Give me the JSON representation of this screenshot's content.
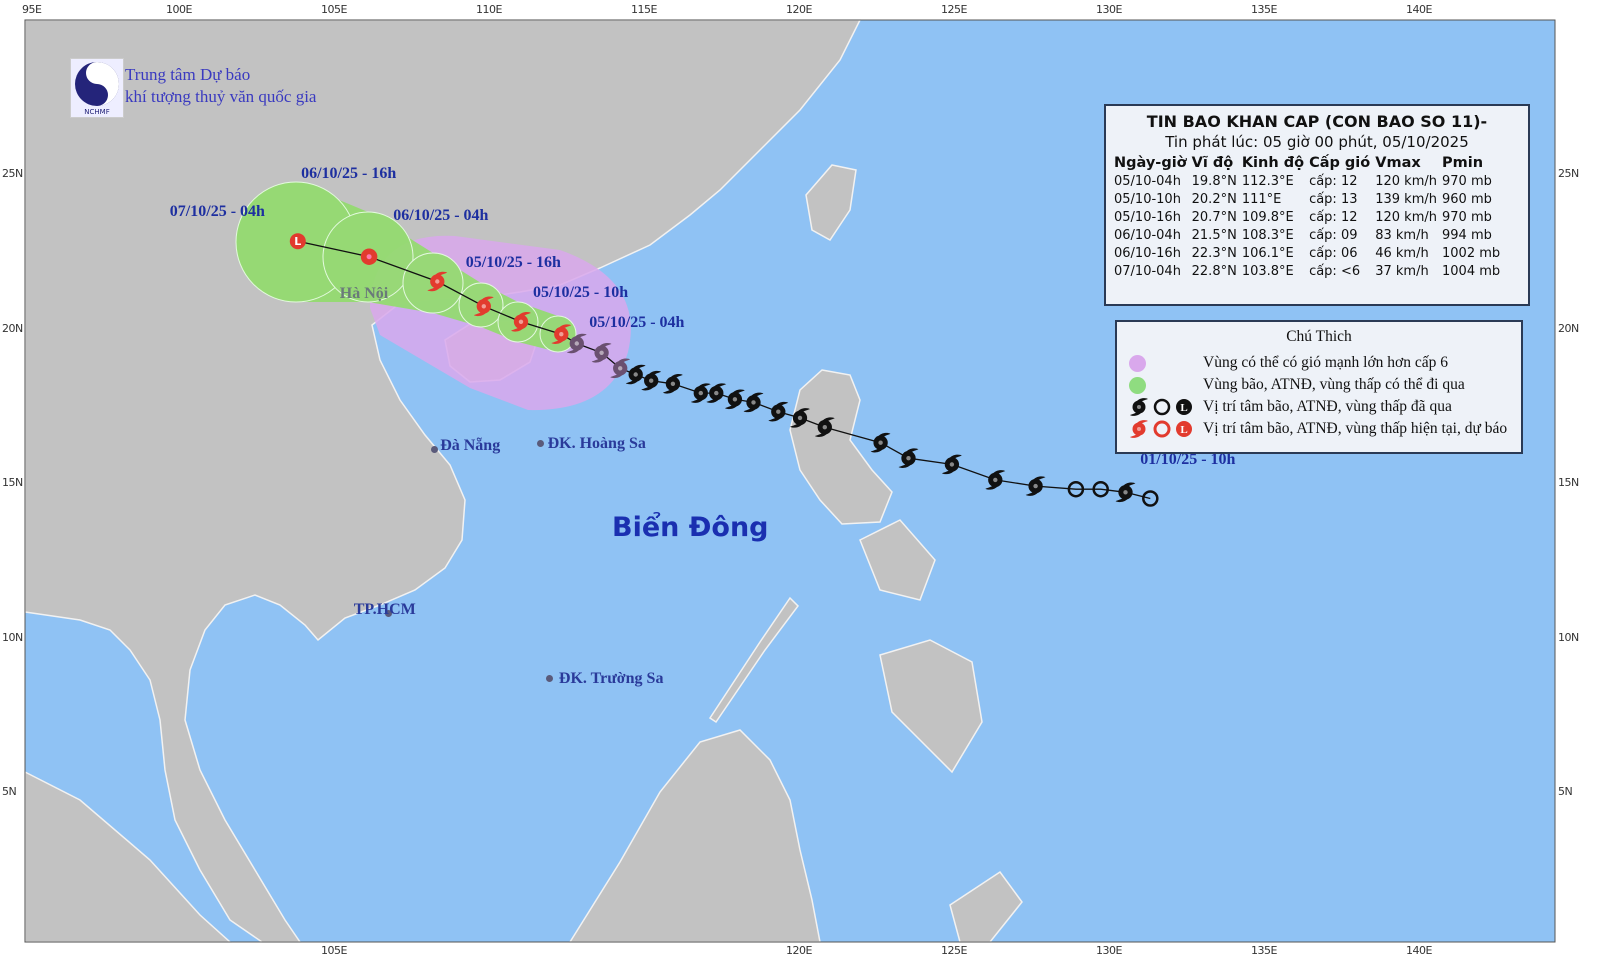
{
  "organization": {
    "line1": "Trung tâm Dự báo",
    "line2": "khí tượng thuỷ văn quốc gia",
    "logo_text": "NCHMF"
  },
  "bulletin": {
    "title": "TIN BAO KHAN CAP (CON BAO SO 11)-",
    "issued": "Tin phát lúc: 05 giờ 00 phút, 05/10/2025",
    "columns": [
      "Ngày-giờ",
      "Vĩ độ",
      "Kinh độ",
      "Cấp gió",
      "Vmax",
      "Pmin"
    ],
    "rows": [
      [
        "05/10-04h",
        "19.8°N",
        "112.3°E",
        "cấp: 12",
        "120 km/h",
        "970 mb"
      ],
      [
        "05/10-10h",
        "20.2°N",
        "111°E",
        "cấp: 13",
        "139 km/h",
        "960 mb"
      ],
      [
        "05/10-16h",
        "20.7°N",
        "109.8°E",
        "cấp: 12",
        "120 km/h",
        "970 mb"
      ],
      [
        "06/10-04h",
        "21.5°N",
        "108.3°E",
        "cấp: 09",
        "83 km/h",
        "994 mb"
      ],
      [
        "06/10-16h",
        "22.3°N",
        "106.1°E",
        "cấp: 06",
        "46 km/h",
        "1002 mb"
      ],
      [
        "07/10-04h",
        "22.8°N",
        "103.8°E",
        "cấp: <6",
        "37 km/h",
        "1004 mb"
      ]
    ]
  },
  "legend": {
    "title": "Chú Thich",
    "items": [
      {
        "label": "Vùng có thể có gió mạnh lớn hơn cấp 6",
        "color": "#d9a8ec"
      },
      {
        "label": "Vùng bão, ATNĐ, vùng thấp có thể đi qua",
        "color": "#8fdc80"
      },
      {
        "label": "Vị trí tâm bão, ATNĐ, vùng thấp đã qua",
        "color": "#111111"
      },
      {
        "label": "Vị trí tâm bão, ATNĐ, vùng thấp hiện tại, dự báo",
        "color": "#e03030"
      }
    ]
  },
  "colors": {
    "ocean": "#8fc2f4",
    "land": "#c2c2c2",
    "track": "#111111",
    "forecast_icon": "#e23b2e",
    "past_icon": "#111111",
    "recent_past_icon": "#6a5070",
    "danger_zone": "#d9a8ec",
    "cone": "#93dc6e",
    "label": "#1d2fa0"
  },
  "map": {
    "sea_label": "Biển Đông",
    "places": [
      {
        "name": "Hà Nội",
        "lon": 105.8,
        "lat": 21.0
      },
      {
        "name": "Đà Nẵng",
        "lon": 108.2,
        "lat": 16.1
      },
      {
        "name": "ĐK. Hoàng Sa",
        "lon": 111.6,
        "lat": 16.3
      },
      {
        "name": "TP.HCM",
        "lon": 106.7,
        "lat": 10.8
      },
      {
        "name": "ĐK. Trường Sa",
        "lon": 111.9,
        "lat": 8.7
      }
    ],
    "lon_ticks_top": [
      "95E",
      "100E",
      "105E",
      "110E",
      "115E",
      "120E",
      "125E",
      "130E",
      "135E",
      "140E"
    ],
    "lon_ticks_bottom": [
      "105E",
      "120E",
      "125E",
      "130E",
      "135E",
      "140E"
    ],
    "lat_ticks": [
      "25N",
      "20N",
      "15N",
      "10N",
      "5N"
    ]
  },
  "forecast": [
    {
      "time_label": "05/10/25 - 04h",
      "lat": 19.8,
      "lon": 112.3,
      "type": "storm"
    },
    {
      "time_label": "05/10/25 - 10h",
      "lat": 20.2,
      "lon": 111.0,
      "type": "storm"
    },
    {
      "time_label": "05/10/25 - 16h",
      "lat": 20.7,
      "lon": 109.8,
      "type": "storm"
    },
    {
      "time_label": "06/10/25 - 04h",
      "lat": 21.5,
      "lon": 108.3,
      "type": "storm"
    },
    {
      "time_label": "06/10/25 - 16h",
      "lat": 22.3,
      "lon": 106.1,
      "type": "depression"
    },
    {
      "time_label": "07/10/25 - 04h",
      "lat": 22.8,
      "lon": 103.8,
      "type": "low"
    }
  ],
  "past_track_start_label": "01/10/25 - 10h",
  "past_track": [
    {
      "lat": 19.5,
      "lon": 112.8,
      "type": "recent"
    },
    {
      "lat": 19.2,
      "lon": 113.6,
      "type": "recent"
    },
    {
      "lat": 18.7,
      "lon": 114.2,
      "type": "recent"
    },
    {
      "lat": 18.5,
      "lon": 114.7,
      "type": "storm"
    },
    {
      "lat": 18.3,
      "lon": 115.2,
      "type": "storm"
    },
    {
      "lat": 18.2,
      "lon": 115.9,
      "type": "storm"
    },
    {
      "lat": 17.9,
      "lon": 116.8,
      "type": "storm"
    },
    {
      "lat": 17.9,
      "lon": 117.3,
      "type": "storm"
    },
    {
      "lat": 17.7,
      "lon": 117.9,
      "type": "storm"
    },
    {
      "lat": 17.6,
      "lon": 118.5,
      "type": "storm"
    },
    {
      "lat": 17.3,
      "lon": 119.3,
      "type": "storm"
    },
    {
      "lat": 17.1,
      "lon": 120.0,
      "type": "storm"
    },
    {
      "lat": 16.8,
      "lon": 120.8,
      "type": "storm"
    },
    {
      "lat": 16.3,
      "lon": 122.6,
      "type": "storm"
    },
    {
      "lat": 15.8,
      "lon": 123.5,
      "type": "storm"
    },
    {
      "lat": 15.6,
      "lon": 124.9,
      "type": "storm"
    },
    {
      "lat": 15.1,
      "lon": 126.3,
      "type": "storm"
    },
    {
      "lat": 14.9,
      "lon": 127.6,
      "type": "storm"
    },
    {
      "lat": 14.8,
      "lon": 128.9,
      "type": "depression"
    },
    {
      "lat": 14.8,
      "lon": 129.7,
      "type": "depression"
    },
    {
      "lat": 14.7,
      "lon": 130.5,
      "type": "storm"
    },
    {
      "lat": 14.5,
      "lon": 131.3,
      "type": "depression"
    }
  ]
}
